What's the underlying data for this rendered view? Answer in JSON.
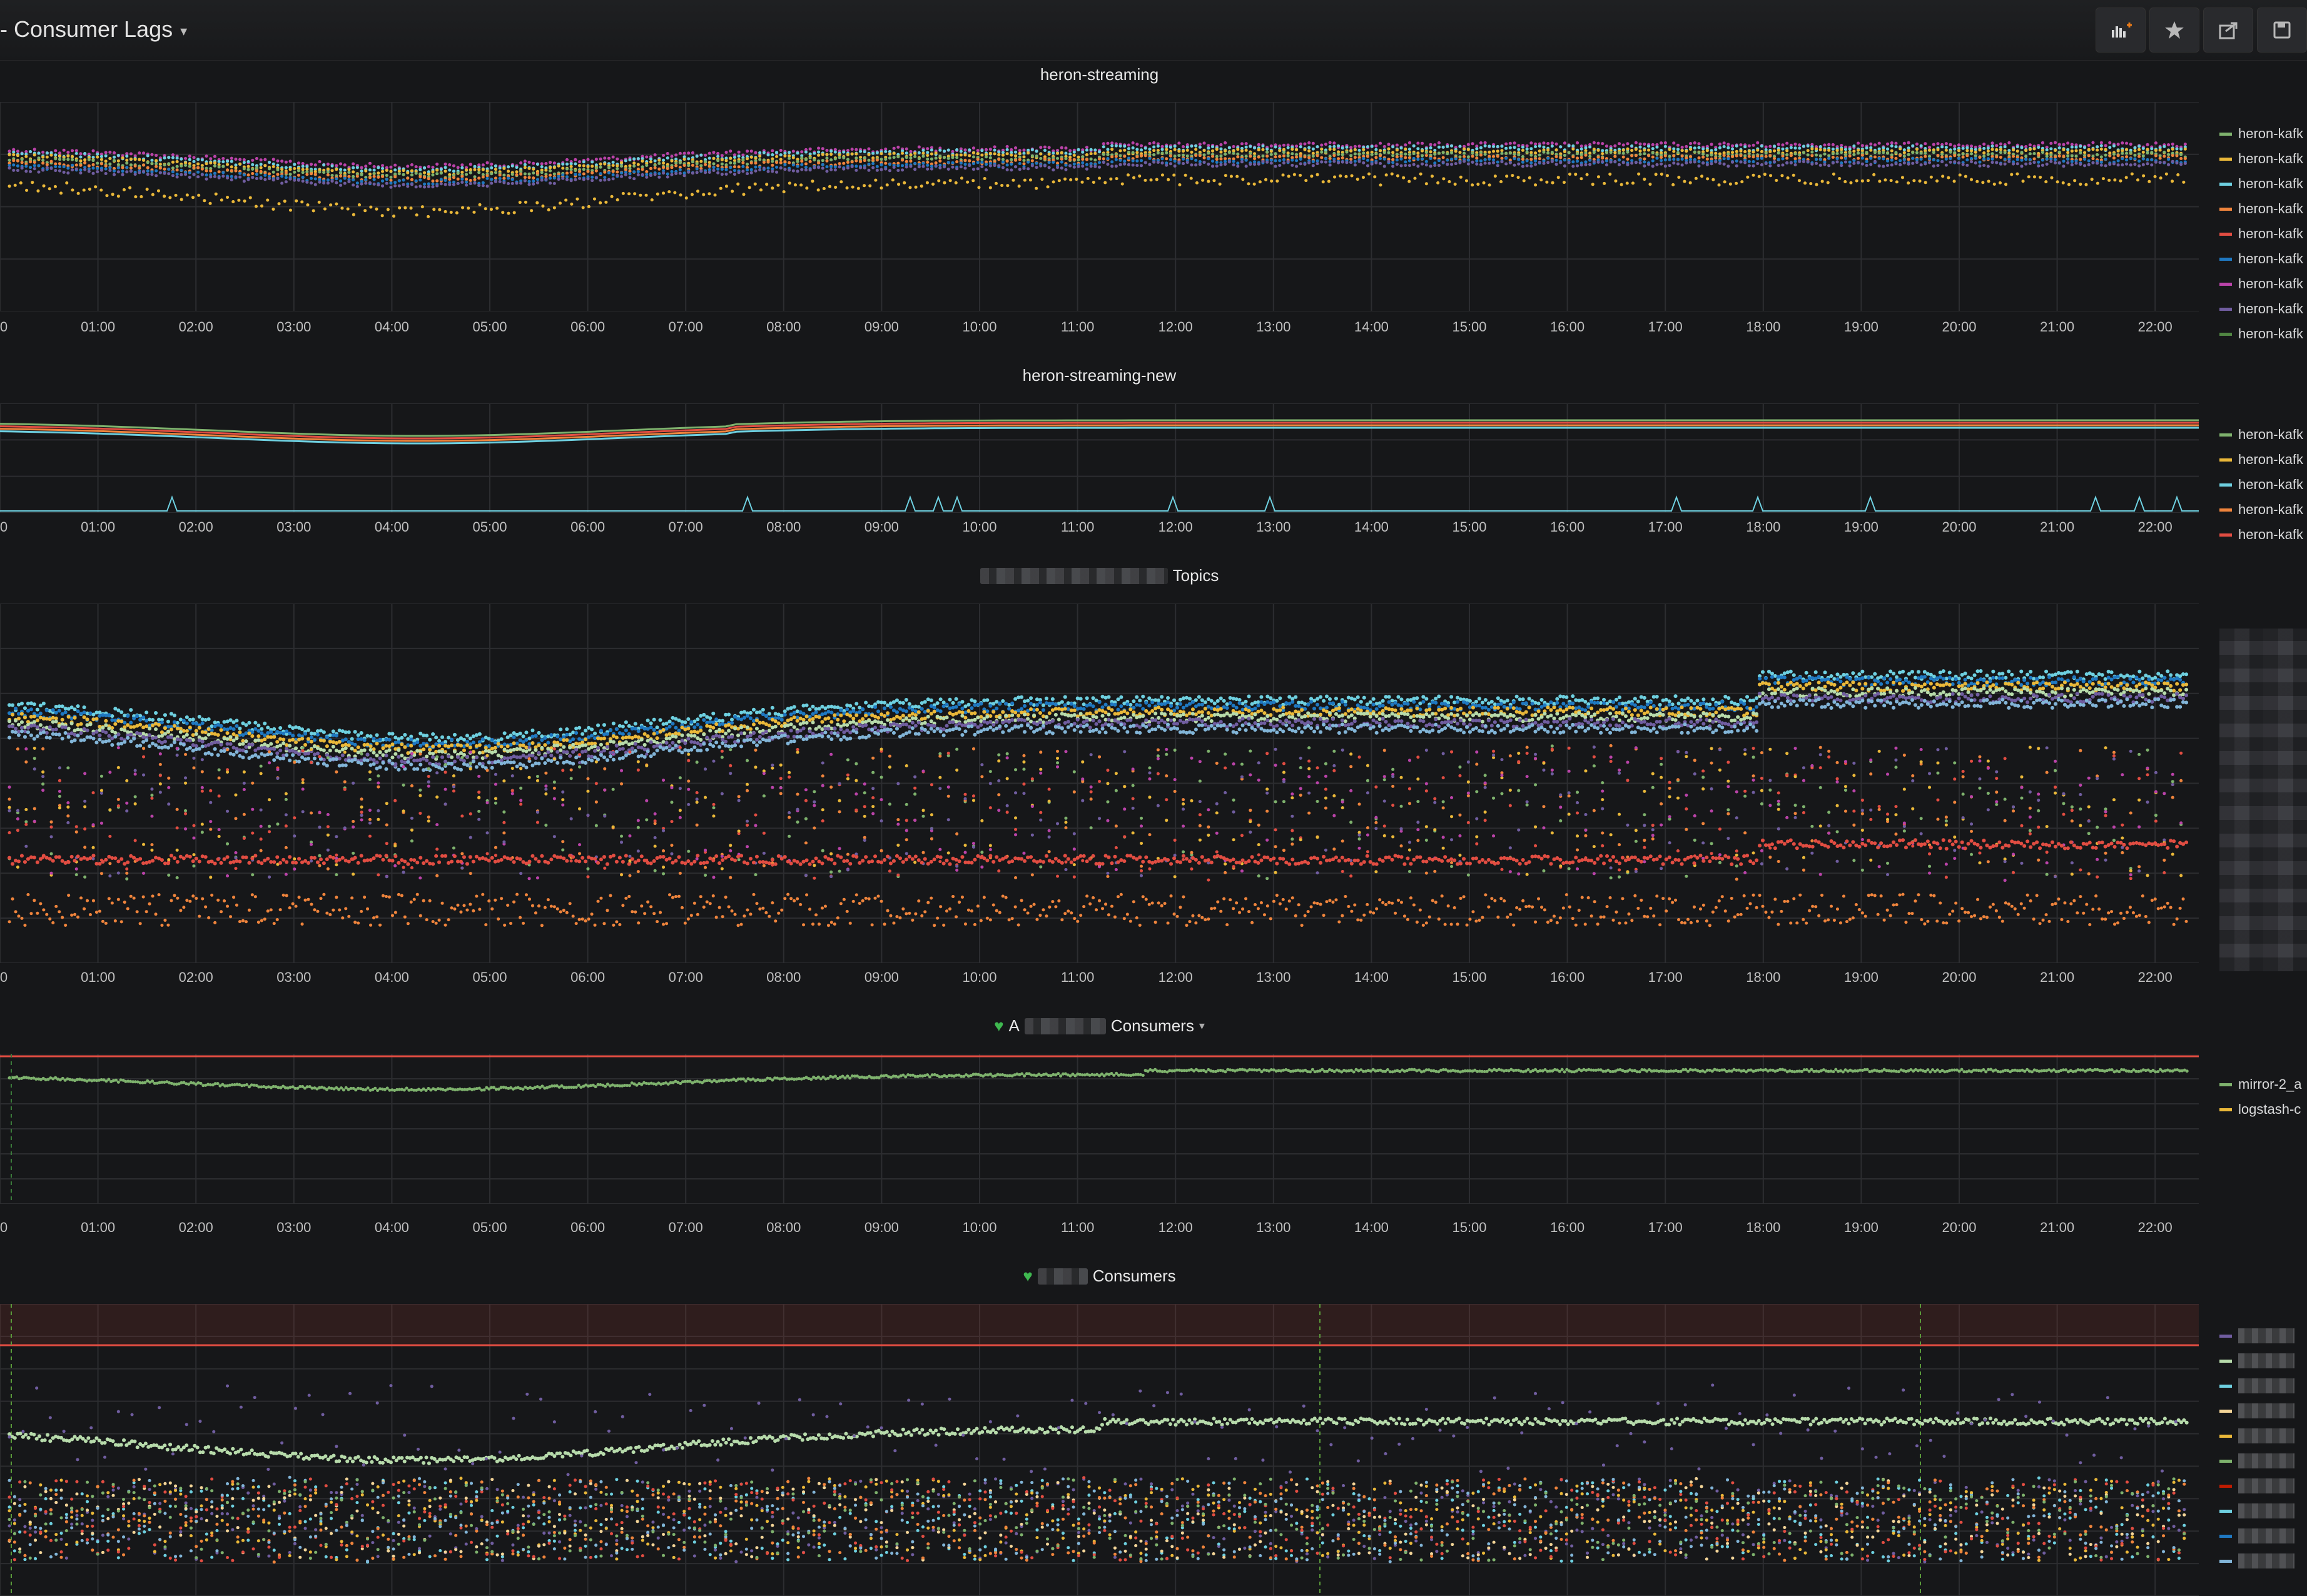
{
  "header": {
    "title": "- Consumer Lags",
    "buttons": [
      {
        "name": "add-panel-button",
        "icon": "add-panel-icon"
      },
      {
        "name": "star-button",
        "icon": "star-icon"
      },
      {
        "name": "share-button",
        "icon": "share-icon"
      },
      {
        "name": "save-button",
        "icon": "save-icon"
      }
    ]
  },
  "x_ticks": [
    "0",
    "01:00",
    "02:00",
    "03:00",
    "04:00",
    "05:00",
    "06:00",
    "07:00",
    "08:00",
    "09:00",
    "10:00",
    "11:00",
    "12:00",
    "13:00",
    "14:00",
    "15:00",
    "16:00",
    "17:00",
    "18:00",
    "19:00",
    "20:00",
    "21:00",
    "22:00"
  ],
  "panels": [
    {
      "title": "heron-streaming",
      "legend": [
        {
          "label": "heron-kafk",
          "color": "#7eb26d"
        },
        {
          "label": "heron-kafk",
          "color": "#eab839"
        },
        {
          "label": "heron-kafk",
          "color": "#6ed0e0"
        },
        {
          "label": "heron-kafk",
          "color": "#ef843c"
        },
        {
          "label": "heron-kafk",
          "color": "#e24d42"
        },
        {
          "label": "heron-kafk",
          "color": "#1f78c1"
        },
        {
          "label": "heron-kafk",
          "color": "#ba43a9"
        },
        {
          "label": "heron-kafk",
          "color": "#705da0"
        },
        {
          "label": "heron-kafk",
          "color": "#508642"
        }
      ]
    },
    {
      "title": "heron-streaming-new",
      "legend": [
        {
          "label": "heron-kafk",
          "color": "#7eb26d"
        },
        {
          "label": "heron-kafk",
          "color": "#eab839"
        },
        {
          "label": "heron-kafk",
          "color": "#6ed0e0"
        },
        {
          "label": "heron-kafk",
          "color": "#ef843c"
        },
        {
          "label": "heron-kafk",
          "color": "#e24d42"
        }
      ]
    },
    {
      "title_suffix": "Topics",
      "legend": []
    },
    {
      "title_prefix": "A",
      "title_suffix": "Consumers",
      "legend": [
        {
          "label": "mirror-2_a",
          "color": "#7eb26d"
        },
        {
          "label": "logstash-c",
          "color": "#eab839"
        }
      ]
    },
    {
      "title_suffix": "Consumers",
      "legend": [
        {
          "label": "",
          "color": "#705da0"
        },
        {
          "label": "",
          "color": "#b7dbab"
        },
        {
          "label": "",
          "color": "#6ed0e0"
        },
        {
          "label": "",
          "color": "#f4d598"
        },
        {
          "label": "",
          "color": "#eab839"
        },
        {
          "label": "",
          "color": "#7eb26d"
        },
        {
          "label": "",
          "color": "#bf1b00"
        },
        {
          "label": "",
          "color": "#6ed0e0"
        },
        {
          "label": "",
          "color": "#1f78c1"
        },
        {
          "label": "",
          "color": "#82b5d8"
        }
      ]
    }
  ]
}
